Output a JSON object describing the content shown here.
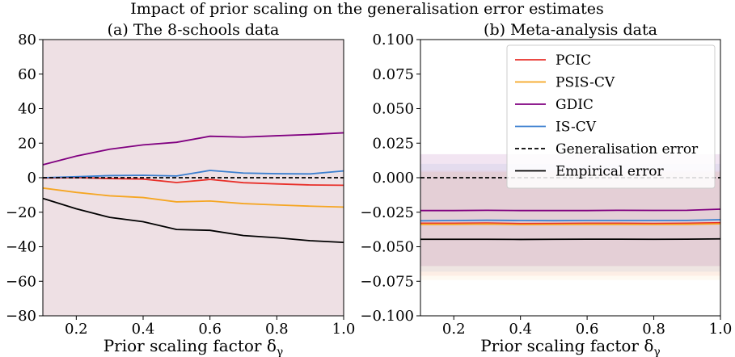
{
  "figure": {
    "suptitle": "Impact of prior scaling on the generalisation error estimates"
  },
  "legend": {
    "entries": [
      {
        "label": "PCIC",
        "color": "#e8302a",
        "style": "solid"
      },
      {
        "label": "PSIS-CV",
        "color": "#f5a623",
        "style": "solid"
      },
      {
        "label": "GDIC",
        "color": "#800080",
        "style": "solid"
      },
      {
        "label": "IS-CV",
        "color": "#3a7ecf",
        "style": "solid"
      },
      {
        "label": "Generalisation error",
        "color": "#000000",
        "style": "dashed"
      },
      {
        "label": "Empirical error",
        "color": "#000000",
        "style": "solid"
      }
    ],
    "placement": "upper-right of panel (b)"
  },
  "chart_data": [
    {
      "type": "line",
      "title": "(a) The 8-schools data",
      "xlabel": "Prior scaling factor δ",
      "xlabel_subscript": "γ",
      "xlim": [
        0.1,
        1.0
      ],
      "ylim": [
        -80,
        80
      ],
      "xticks": [
        0.2,
        0.4,
        0.6,
        0.8,
        1.0
      ],
      "xtick_labels": [
        "0.2",
        "0.4",
        "0.6",
        "0.8",
        "1.0"
      ],
      "yticks": [
        -80,
        -60,
        -40,
        -20,
        0,
        20,
        40,
        60,
        80
      ],
      "ytick_labels": [
        "−80",
        "−60",
        "−40",
        "−20",
        "0",
        "20",
        "40",
        "60",
        "80"
      ],
      "grid": false,
      "background_color": "#eee0e4",
      "x": [
        0.1,
        0.2,
        0.3,
        0.4,
        0.5,
        0.6,
        0.7,
        0.8,
        0.9,
        1.0
      ],
      "series": [
        {
          "label": "PCIC",
          "color": "#e8302a",
          "style": "solid",
          "values": [
            -0.2,
            0.1,
            -0.5,
            -0.8,
            -2.8,
            -1.0,
            -2.9,
            -3.6,
            -4.2,
            -4.4
          ]
        },
        {
          "label": "PSIS-CV",
          "color": "#f5a623",
          "style": "solid",
          "values": [
            -6.0,
            -8.5,
            -10.5,
            -11.5,
            -14.0,
            -13.5,
            -15.0,
            -15.8,
            -16.5,
            -17.0
          ]
        },
        {
          "label": "GDIC",
          "color": "#800080",
          "style": "solid",
          "values": [
            7.5,
            12.5,
            16.5,
            19.0,
            20.5,
            24.0,
            23.5,
            24.3,
            25.0,
            26.0
          ]
        },
        {
          "label": "IS-CV",
          "color": "#3a7ecf",
          "style": "solid",
          "values": [
            0.0,
            0.6,
            1.2,
            1.4,
            1.0,
            4.2,
            2.7,
            2.3,
            2.2,
            3.9
          ]
        },
        {
          "label": "Generalisation error",
          "color": "#000000",
          "style": "dashed",
          "values": [
            0,
            0,
            0,
            0,
            0,
            0,
            0,
            0,
            0,
            0
          ]
        },
        {
          "label": "Empirical error",
          "color": "#000000",
          "style": "solid",
          "values": [
            -12.0,
            -18.0,
            -23.0,
            -25.5,
            -30.0,
            -30.5,
            -33.5,
            -34.8,
            -36.5,
            -37.5
          ]
        }
      ]
    },
    {
      "type": "line",
      "title": "(b) Meta-analysis data",
      "xlabel": "Prior scaling factor δ",
      "xlabel_subscript": "γ",
      "xlim": [
        0.1,
        1.0
      ],
      "ylim": [
        -0.1,
        0.1
      ],
      "xticks": [
        0.2,
        0.4,
        0.6,
        0.8,
        1.0
      ],
      "xtick_labels": [
        "0.2",
        "0.4",
        "0.6",
        "0.8",
        "1.0"
      ],
      "yticks": [
        -0.1,
        -0.075,
        -0.05,
        -0.025,
        0.0,
        0.025,
        0.05,
        0.075,
        0.1
      ],
      "ytick_labels": [
        "−0.100",
        "−0.075",
        "−0.050",
        "−0.025",
        "0.000",
        "0.025",
        "0.050",
        "0.075",
        "0.100"
      ],
      "grid": false,
      "x": [
        0.1,
        0.2,
        0.3,
        0.4,
        0.5,
        0.6,
        0.7,
        0.8,
        0.9,
        1.0
      ],
      "bands": [
        {
          "label": "IS-CV",
          "color": "#3a7ecf",
          "lower": -0.068,
          "upper": 0.01,
          "opacity": 0.08
        },
        {
          "label": "GDIC",
          "color": "#800080",
          "lower": -0.064,
          "upper": 0.017,
          "opacity": 0.1
        },
        {
          "label": "PCIC",
          "color": "#e8302a",
          "lower": -0.071,
          "upper": 0.005,
          "opacity": 0.06
        },
        {
          "label": "PSIS-CV",
          "color": "#f5a623",
          "lower": -0.074,
          "upper": 0.004,
          "opacity": 0.06
        }
      ],
      "series": [
        {
          "label": "PCIC",
          "color": "#e8302a",
          "style": "solid",
          "values": [
            -0.033,
            -0.033,
            -0.0328,
            -0.0332,
            -0.0331,
            -0.033,
            -0.033,
            -0.0331,
            -0.033,
            -0.0326
          ]
        },
        {
          "label": "PSIS-CV",
          "color": "#f5a623",
          "style": "solid",
          "values": [
            -0.0338,
            -0.0338,
            -0.0336,
            -0.034,
            -0.0339,
            -0.0338,
            -0.0338,
            -0.0339,
            -0.0338,
            -0.0334
          ]
        },
        {
          "label": "GDIC",
          "color": "#800080",
          "style": "solid",
          "values": [
            -0.0238,
            -0.0238,
            -0.0236,
            -0.0238,
            -0.0238,
            -0.0238,
            -0.0236,
            -0.0237,
            -0.0236,
            -0.0228
          ]
        },
        {
          "label": "IS-CV",
          "color": "#3a7ecf",
          "style": "solid",
          "values": [
            -0.0312,
            -0.031,
            -0.0308,
            -0.031,
            -0.0311,
            -0.031,
            -0.031,
            -0.031,
            -0.0309,
            -0.0304
          ]
        },
        {
          "label": "Generalisation error",
          "color": "#000000",
          "style": "dashed",
          "values": [
            0,
            0,
            0,
            0,
            0,
            0,
            0,
            0,
            0,
            0
          ]
        },
        {
          "label": "Empirical error",
          "color": "#000000",
          "style": "solid",
          "values": [
            -0.0446,
            -0.0446,
            -0.0446,
            -0.0447,
            -0.0446,
            -0.0445,
            -0.0445,
            -0.0446,
            -0.0445,
            -0.0443
          ]
        }
      ]
    }
  ]
}
